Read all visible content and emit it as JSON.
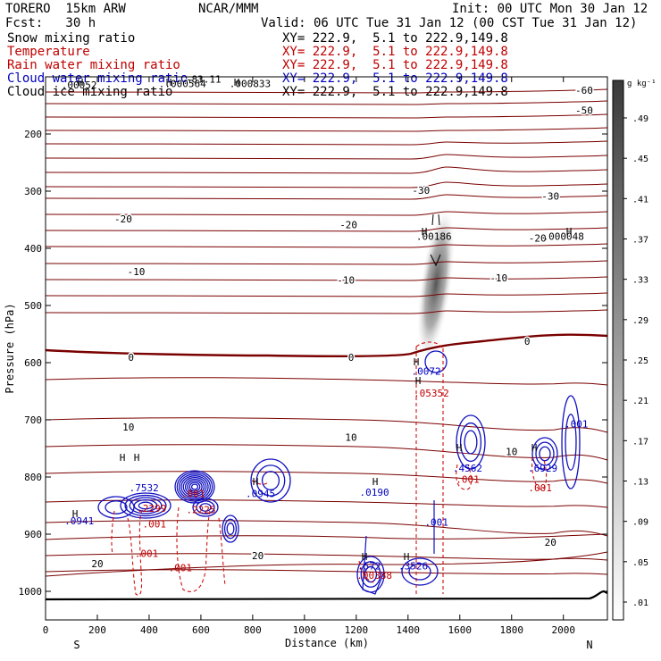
{
  "header": {
    "model": "TORERO  15km ARW",
    "center": "NCAR/MMM",
    "init": "Init: 00 UTC Mon 30 Jan 12",
    "fcst": "Fcst:   30 h",
    "valid": "Valid: 06 UTC Tue 31 Jan 12 (00 CST Tue 31 Jan 12)"
  },
  "fields": [
    {
      "label": "Snow mixing ratio",
      "color": "#000000",
      "xy": "XY= 222.9,  5.1 to 222.9,149.8"
    },
    {
      "label": "Temperature",
      "color": "#c00000",
      "xy": "XY= 222.9,  5.1 to 222.9,149.8"
    },
    {
      "label": "Rain water mixing ratio",
      "color": "#c00000",
      "xy": "XY= 222.9,  5.1 to 222.9,149.8"
    },
    {
      "label": "Cloud water mixing ratio",
      "color": "#0000c0",
      "xy": "XY= 222.9,  5.1 to 222.9,149.8"
    },
    {
      "label": "Cloud ice mixing ratio",
      "color": "#000000",
      "xy": "XY= 222.9,  5.1 to 222.9,149.8"
    }
  ],
  "chart_data": {
    "type": "cross-section",
    "xlabel": "Distance (km)",
    "ylabel": "Pressure (hPa)",
    "xlim": [
      0,
      2170
    ],
    "ylim": [
      1050,
      100
    ],
    "x_ticks": [
      0,
      200,
      400,
      600,
      800,
      1000,
      1200,
      1400,
      1600,
      1800,
      2000
    ],
    "y_ticks": [
      200,
      300,
      400,
      500,
      600,
      700,
      800,
      900,
      1000
    ],
    "endpoints": {
      "left": "S",
      "right": "N"
    },
    "colorbar": {
      "unit": "g kg⁻¹",
      "labels": [
        ".01",
        ".05",
        ".09",
        ".13",
        ".17",
        ".21",
        ".25",
        ".29",
        ".33",
        ".37",
        ".41",
        ".45",
        ".49"
      ]
    },
    "temperature_labels": [
      {
        "text": "-60",
        "x": 2080,
        "p": 130
      },
      {
        "text": "-50",
        "x": 2080,
        "p": 165
      },
      {
        "text": "-30",
        "x": 1450,
        "p": 305
      },
      {
        "text": "-30",
        "x": 1950,
        "p": 315
      },
      {
        "text": "-20",
        "x": 300,
        "p": 355
      },
      {
        "text": "-20",
        "x": 1170,
        "p": 365
      },
      {
        "text": "-20",
        "x": 1900,
        "p": 388
      },
      {
        "text": "-10",
        "x": 350,
        "p": 447
      },
      {
        "text": "-10",
        "x": 1160,
        "p": 462
      },
      {
        "text": "-10",
        "x": 1750,
        "p": 458
      },
      {
        "text": "0",
        "x": 330,
        "p": 597
      },
      {
        "text": "0",
        "x": 1180,
        "p": 597
      },
      {
        "text": "0",
        "x": 1860,
        "p": 569
      },
      {
        "text": "10",
        "x": 320,
        "p": 719
      },
      {
        "text": "10",
        "x": 1180,
        "p": 737
      },
      {
        "text": "10",
        "x": 1800,
        "p": 762
      },
      {
        "text": "20",
        "x": 1950,
        "p": 920
      },
      {
        "text": "20",
        "x": 200,
        "p": 958
      },
      {
        "text": "20",
        "x": 820,
        "p": 944
      },
      {
        "text": "-83.11",
        "x": 610,
        "p": 110
      }
    ],
    "maxima_labels": [
      {
        "text": ".00052",
        "x": 130,
        "p": 120,
        "color": "#000000"
      },
      {
        "text": ".000564",
        "x": 540,
        "p": 118,
        "color": "#000000"
      },
      {
        "text": ".000833",
        "x": 790,
        "p": 118,
        "color": "#000000"
      },
      {
        "text": ".00186",
        "x": 1500,
        "p": 385,
        "color": "#000000"
      },
      {
        "text": ".000048",
        "x": 2000,
        "p": 385,
        "color": "#000000"
      },
      {
        "text": ".0072",
        "x": 1470,
        "p": 621,
        "color": "#0000c0"
      },
      {
        "text": ".05352",
        "x": 1490,
        "p": 659,
        "color": "#c00000"
      },
      {
        "text": ".4562",
        "x": 1630,
        "p": 791,
        "color": "#0000c0"
      },
      {
        "text": ".6929",
        "x": 1920,
        "p": 791,
        "color": "#0000c0"
      },
      {
        "text": ".7532",
        "x": 380,
        "p": 825,
        "color": "#0000c0"
      },
      {
        "text": ".0945",
        "x": 830,
        "p": 835,
        "color": "#0000c0"
      },
      {
        "text": ".0190",
        "x": 1270,
        "p": 833,
        "color": "#0000c0"
      },
      {
        "text": ".2225",
        "x": 600,
        "p": 863,
        "color": "#c00000"
      },
      {
        "text": ".2299",
        "x": 410,
        "p": 861,
        "color": "#c00000"
      },
      {
        "text": ".0941",
        "x": 130,
        "p": 883,
        "color": "#0000c0"
      },
      {
        "text": ".572",
        "x": 1250,
        "p": 962,
        "color": "#0000c0"
      },
      {
        "text": ".3526",
        "x": 1420,
        "p": 962,
        "color": "#0000c0"
      },
      {
        "text": ".00388",
        "x": 1270,
        "p": 978,
        "color": "#c00000"
      },
      {
        "text": ".001",
        "x": 420,
        "p": 888,
        "color": "#c00000"
      },
      {
        "text": ".001",
        "x": 390,
        "p": 940,
        "color": "#c00000"
      },
      {
        "text": ".001",
        "x": 520,
        "p": 965,
        "color": "#c00000"
      },
      {
        "text": ".001",
        "x": 1510,
        "p": 885,
        "color": "#0000c0"
      },
      {
        "text": ".001",
        "x": 2050,
        "p": 713,
        "color": "#0000c0"
      },
      {
        "text": ".001",
        "x": 1630,
        "p": 810,
        "color": "#c00000"
      },
      {
        "text": ".001",
        "x": 1910,
        "p": 825,
        "color": "#c00000"
      },
      {
        "text": ".001",
        "x": 570,
        "p": 835,
        "color": "#c00000"
      }
    ]
  }
}
